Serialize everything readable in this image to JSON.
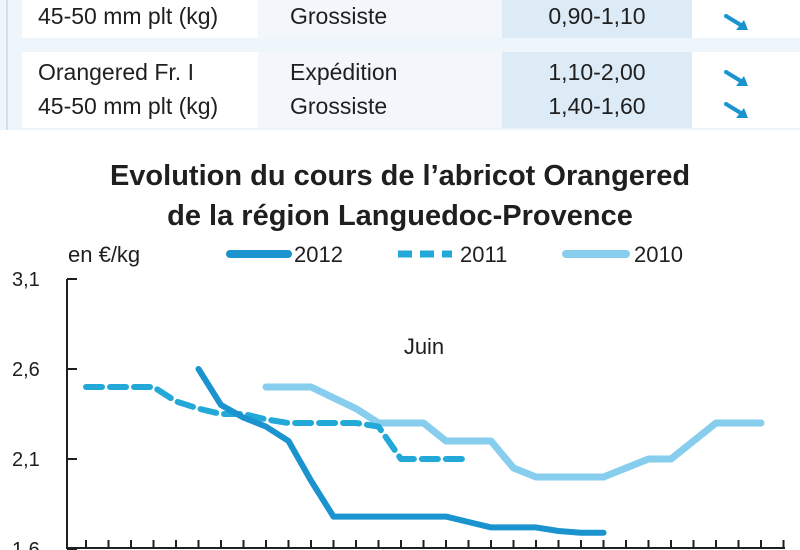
{
  "table": {
    "rows": [
      {
        "product": "45-50 mm plt (kg)",
        "stage": "Grossiste",
        "price": "0,90-1,10",
        "trend_icon": "down-right-arrow-icon"
      },
      {
        "product": "Orangered Fr. I",
        "stage": "Expédition",
        "price": "1,10-2,00",
        "trend_icon": "down-right-arrow-icon"
      },
      {
        "product": "45-50 mm plt (kg)",
        "stage": "Grossiste",
        "price": "1,40-1,60",
        "trend_icon": "down-right-arrow-icon"
      }
    ]
  },
  "colors": {
    "s2012": "#1a93cf",
    "s2011": "#22a9d8",
    "s2010": "#86cdee",
    "price_col": "#dcebf6",
    "arrow": "#1a93cf"
  },
  "chart_data": {
    "type": "line",
    "title_line1": "Evolution du cours de l’abricot Orangered",
    "title_line2": "de la région Languedoc-Provence",
    "ylabel": "en €/kg",
    "annotation": "Juin",
    "ylim": [
      1.6,
      3.1
    ],
    "yticks": [
      1.6,
      2.1,
      2.6,
      3.1
    ],
    "ytick_labels": [
      "1,6",
      "2,1",
      "2,6",
      "3,1"
    ],
    "x_count": 32,
    "legend_position": "top",
    "series": [
      {
        "name": "2012",
        "style": "solid",
        "x": [
          5,
          6,
          7,
          8,
          9,
          10,
          11,
          12,
          13,
          14,
          15,
          16,
          17,
          18,
          19,
          20,
          21,
          22,
          23
        ],
        "y": [
          2.6,
          2.4,
          2.33,
          2.28,
          2.2,
          1.98,
          1.78,
          1.78,
          1.78,
          1.78,
          1.78,
          1.78,
          1.75,
          1.72,
          1.72,
          1.72,
          1.7,
          1.69,
          1.69
        ]
      },
      {
        "name": "2011",
        "style": "dashed",
        "x": [
          0,
          1,
          2,
          3,
          4,
          5,
          6,
          7,
          8,
          9,
          10,
          11,
          12,
          13,
          14,
          15,
          16,
          17
        ],
        "y": [
          2.5,
          2.5,
          2.5,
          2.5,
          2.42,
          2.38,
          2.35,
          2.35,
          2.32,
          2.3,
          2.3,
          2.3,
          2.3,
          2.28,
          2.1,
          2.1,
          2.1,
          2.1
        ]
      },
      {
        "name": "2010",
        "style": "light",
        "x": [
          8,
          9,
          10,
          11,
          12,
          13,
          14,
          15,
          16,
          17,
          18,
          19,
          20,
          21,
          22,
          23,
          24,
          25,
          26,
          27,
          28,
          29,
          30
        ],
        "y": [
          2.5,
          2.5,
          2.5,
          2.44,
          2.38,
          2.3,
          2.3,
          2.3,
          2.2,
          2.2,
          2.2,
          2.05,
          2.0,
          2.0,
          2.0,
          2.0,
          2.05,
          2.1,
          2.1,
          2.2,
          2.3,
          2.3,
          2.3
        ]
      }
    ]
  }
}
